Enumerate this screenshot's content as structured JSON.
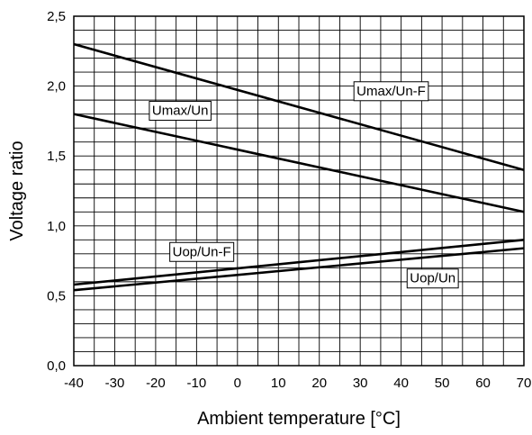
{
  "chart_data": {
    "type": "line",
    "xlabel": "Ambient temperature  [°C]",
    "ylabel": "Voltage ratio",
    "xlim": [
      -40,
      70
    ],
    "ylim": [
      0,
      2.5
    ],
    "x_ticks": [
      "-40",
      "-30",
      "-20",
      "-10",
      "0",
      "10",
      "20",
      "30",
      "40",
      "50",
      "60",
      "70"
    ],
    "y_ticks": [
      "0,0",
      "0,5",
      "1,0",
      "1,5",
      "2,0",
      "2,5"
    ],
    "x_tick_values": [
      -40,
      -30,
      -20,
      -10,
      0,
      10,
      20,
      30,
      40,
      50,
      60,
      70
    ],
    "y_tick_values": [
      0,
      0.5,
      1.0,
      1.5,
      2.0,
      2.5
    ],
    "grid": true,
    "grid_x_step": 5,
    "grid_y_step": 0.1,
    "series": [
      {
        "name": "Umax/Un-F",
        "x": [
          -40,
          70
        ],
        "y": [
          2.3,
          1.4
        ],
        "label_at": [
          30,
          1.96
        ]
      },
      {
        "name": "Umax/Un",
        "x": [
          -40,
          70
        ],
        "y": [
          1.8,
          1.1
        ],
        "label_at": [
          -20,
          1.82
        ]
      },
      {
        "name": "Uop/Un-F",
        "x": [
          -40,
          70
        ],
        "y": [
          0.58,
          0.9
        ],
        "label_at": [
          -15,
          0.81
        ]
      },
      {
        "name": "Uop/Un",
        "x": [
          -40,
          70
        ],
        "y": [
          0.54,
          0.84
        ],
        "label_at": [
          43,
          0.62
        ]
      }
    ]
  }
}
